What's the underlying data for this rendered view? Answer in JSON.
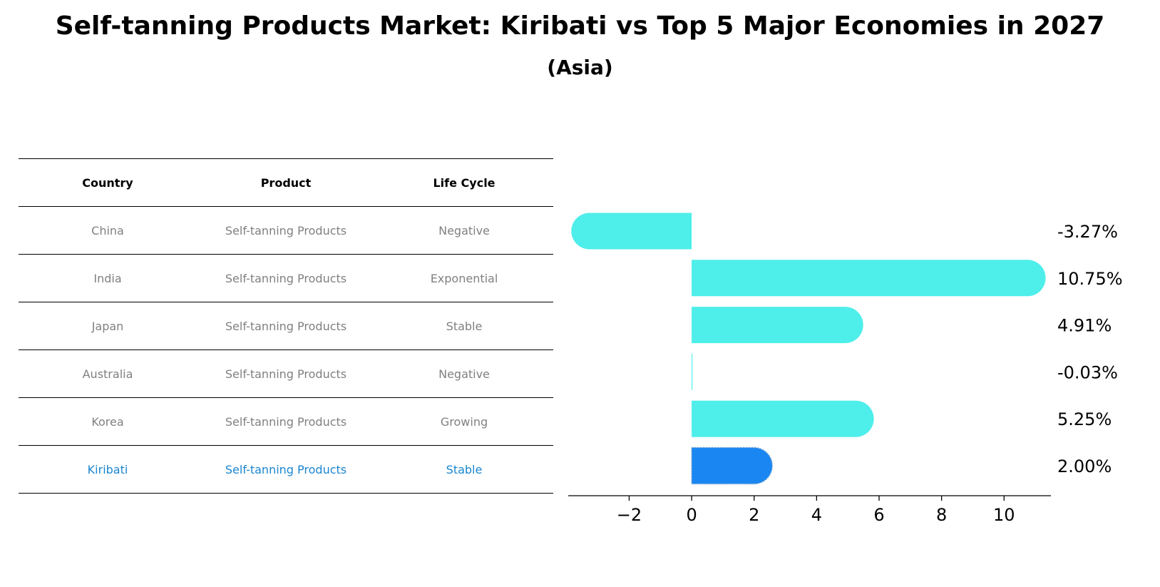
{
  "title": "Self-tanning Products Market: Kiribati vs Top 5 Major Economies in 2027",
  "subtitle": "(Asia)",
  "table": {
    "headers": [
      "Country",
      "Product",
      "Life Cycle"
    ],
    "rows": [
      {
        "country": "China",
        "product": "Self-tanning Products",
        "life_cycle": "Negative"
      },
      {
        "country": "India",
        "product": "Self-tanning Products",
        "life_cycle": "Exponential"
      },
      {
        "country": "Japan",
        "product": "Self-tanning Products",
        "life_cycle": "Stable"
      },
      {
        "country": "Australia",
        "product": "Self-tanning Products",
        "life_cycle": "Negative"
      },
      {
        "country": "Korea",
        "product": "Self-tanning Products",
        "life_cycle": "Growing"
      },
      {
        "country": "Kiribati",
        "product": "Self-tanning Products",
        "life_cycle": "Stable"
      }
    ]
  },
  "chart_data": {
    "type": "bar",
    "orientation": "horizontal",
    "categories": [
      "China",
      "India",
      "Japan",
      "Australia",
      "Korea",
      "Kiribati"
    ],
    "values": [
      -3.27,
      10.75,
      4.91,
      -0.03,
      5.25,
      2.0
    ],
    "value_labels": [
      "-3.27%",
      "10.75%",
      "4.91%",
      "-0.03%",
      "5.25%",
      "2.00%"
    ],
    "highlight": "Kiribati",
    "xlim": [
      -3.95,
      11.5
    ],
    "xticks": [
      -2,
      0,
      2,
      4,
      6,
      8,
      10
    ],
    "xtick_labels": [
      "−2",
      "0",
      "2",
      "4",
      "6",
      "8",
      "10"
    ],
    "colors": {
      "default": "#4eeeea",
      "highlight": "#1a86f2"
    },
    "xlabel": "",
    "ylabel": "",
    "grid": false
  }
}
